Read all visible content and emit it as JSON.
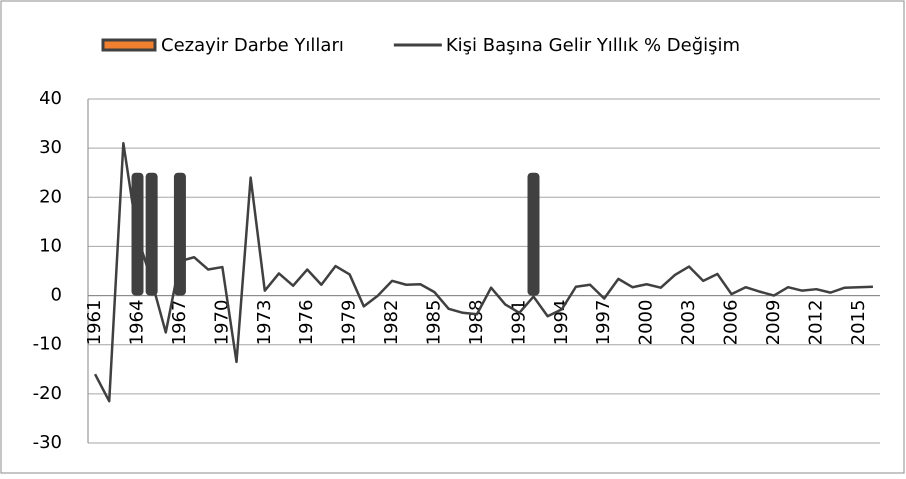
{
  "chart_data": {
    "type": "bar-line",
    "categories": [
      "1961",
      null,
      null,
      "1964",
      null,
      null,
      "1967",
      null,
      null,
      "1970",
      null,
      null,
      "1973",
      null,
      null,
      "1976",
      null,
      null,
      "1979",
      null,
      null,
      "1982",
      null,
      null,
      "1985",
      null,
      null,
      "1988",
      null,
      null,
      "1991",
      null,
      null,
      "1994",
      null,
      null,
      "1997",
      null,
      null,
      "2000",
      null,
      null,
      "2003",
      null,
      null,
      "2006",
      null,
      null,
      "2009",
      null,
      null,
      "2012",
      null,
      null,
      "2015",
      null
    ],
    "series": [
      {
        "name": "Cezayir Darbe Yılları",
        "type": "bar",
        "color": "#404040",
        "legend_color": "#f07f2f",
        "values": [
          null,
          null,
          null,
          25,
          25,
          null,
          25,
          null,
          null,
          null,
          null,
          null,
          null,
          null,
          null,
          null,
          null,
          null,
          null,
          null,
          null,
          null,
          null,
          null,
          null,
          null,
          null,
          null,
          null,
          null,
          null,
          25,
          null,
          null,
          null,
          null,
          null,
          null,
          null,
          null,
          null,
          null,
          null,
          null,
          null,
          null,
          null,
          null,
          null,
          null,
          null,
          null,
          null,
          null,
          null,
          null
        ]
      },
      {
        "name": "Kişi Başına Gelir Yıllık % Değişim",
        "type": "line",
        "color": "#404040",
        "values": [
          -16,
          -21.5,
          31,
          12,
          3,
          -7.5,
          7,
          7.8,
          5.3,
          5.8,
          -13.5,
          24,
          1,
          4.5,
          2,
          5.3,
          2.2,
          6,
          4.3,
          -2.2,
          0,
          3,
          2.2,
          2.3,
          0.7,
          -2.7,
          -3.5,
          -3.8,
          1.6,
          -1.8,
          -3.5,
          -0.2,
          -4.2,
          -2.8,
          1.8,
          2.2,
          -0.6,
          3.4,
          1.7,
          2.3,
          1.6,
          4.2,
          5.9,
          3,
          4.4,
          0.3,
          1.7,
          0.8,
          0,
          1.7,
          1,
          1.3,
          0.6,
          1.6,
          1.7,
          1.8
        ]
      }
    ],
    "ylim": [
      -30,
      40
    ],
    "yticks": [
      -30,
      -20,
      -10,
      0,
      10,
      20,
      30,
      40
    ],
    "grid": true,
    "legend": "top"
  }
}
